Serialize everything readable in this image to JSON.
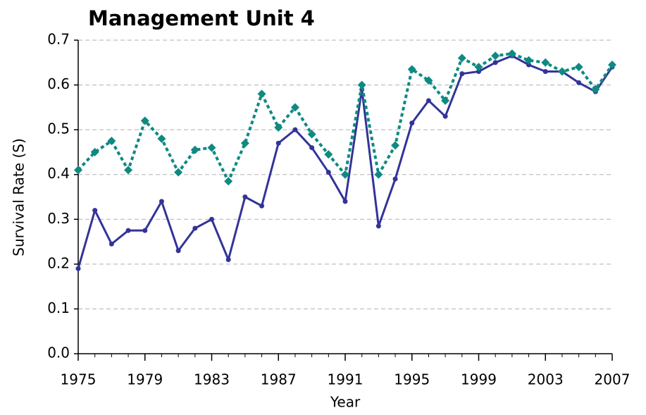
{
  "chart_data": {
    "type": "line",
    "title": "Management Unit 4",
    "x_label": "Year",
    "y_label": "Survival Rate (S)",
    "x": [
      1975,
      1976,
      1977,
      1978,
      1979,
      1980,
      1981,
      1982,
      1983,
      1984,
      1985,
      1986,
      1987,
      1988,
      1989,
      1990,
      1991,
      1992,
      1993,
      1994,
      1995,
      1996,
      1997,
      1998,
      1999,
      2000,
      2001,
      2002,
      2003,
      2004,
      2005,
      2006,
      2007
    ],
    "series": [
      {
        "color": "#333399",
        "line_style": "solid",
        "marker": "circle",
        "values": [
          0.19,
          0.32,
          0.245,
          0.275,
          0.275,
          0.34,
          0.23,
          0.28,
          0.3,
          0.21,
          0.35,
          0.33,
          0.47,
          0.5,
          0.46,
          0.405,
          0.34,
          0.59,
          0.285,
          0.39,
          0.515,
          0.565,
          0.53,
          0.625,
          0.63,
          0.65,
          0.665,
          0.645,
          0.63,
          0.63,
          0.605,
          0.585,
          0.64
        ]
      },
      {
        "color": "#0e8a82",
        "line_style": "dotted",
        "marker": "diamond",
        "values": [
          0.41,
          0.45,
          0.475,
          0.41,
          0.52,
          0.48,
          0.405,
          0.455,
          0.46,
          0.385,
          0.47,
          0.58,
          0.505,
          0.55,
          0.49,
          0.445,
          0.4,
          0.6,
          0.4,
          0.465,
          0.635,
          0.61,
          0.565,
          0.66,
          0.64,
          0.665,
          0.67,
          0.655,
          0.65,
          0.63,
          0.64,
          0.59,
          0.645
        ]
      }
    ],
    "xlim": [
      1975,
      2007
    ],
    "xticks": [
      1975,
      1979,
      1983,
      1987,
      1991,
      1995,
      1999,
      2003,
      2007
    ],
    "ylim": [
      0,
      0.7
    ],
    "yticks": [
      {
        "value": 0,
        "label": "0.0"
      },
      0.1,
      0.2,
      0.3,
      0.4,
      0.5,
      0.6,
      0.7
    ],
    "grid": true
  }
}
